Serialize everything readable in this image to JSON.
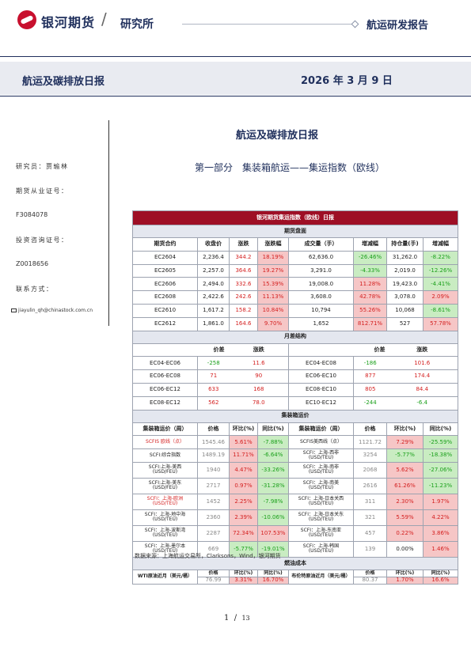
{
  "header": {
    "brand": "银河期货",
    "slash": "/",
    "institute": "研究所",
    "report_type": "航运研发报告"
  },
  "band": {
    "title": "航运及碳排放日报",
    "date": "2026 年 3 月 9 日"
  },
  "sidebar": {
    "researcher": "研究员：贾瑜林",
    "futures_license_label": "期货从业证号：",
    "futures_license": "F3084078",
    "consult_label": "投资咨询证号：",
    "consult": "Z0018656",
    "contact_label": "联系方式：",
    "email": "jiayulin_qh@chinastock.com.cn"
  },
  "doc_title": "航运及碳排放日报",
  "section_title": "第一部分　集装箱航运——集运指数（欧线）",
  "table": {
    "title": "银河期货集运指数（欧线）日报",
    "futures": {
      "section": "期货盘面",
      "headers": [
        "期货合约",
        "收盘价",
        "涨跌",
        "涨跌幅",
        "成交量（手）",
        "增减幅",
        "持仓量(手)",
        "增减幅"
      ],
      "rows": [
        [
          "EC2604",
          "2,236.4",
          "344.2",
          "18.19%",
          "62,636.0",
          "-26.46%",
          "31,262.0",
          "-8.22%"
        ],
        [
          "EC2605",
          "2,257.0",
          "364.6",
          "19.27%",
          "3,291.0",
          "-4.33%",
          "2,019.0",
          "-12.26%"
        ],
        [
          "EC2606",
          "2,494.0",
          "332.6",
          "15.39%",
          "19,008.0",
          "11.28%",
          "19,423.0",
          "-4.41%"
        ],
        [
          "EC2608",
          "2,422.6",
          "242.6",
          "11.13%",
          "3,608.0",
          "42.78%",
          "3,078.0",
          "2.09%"
        ],
        [
          "EC2610",
          "1,617.2",
          "158.2",
          "10.84%",
          "10,794",
          "55.26%",
          "10,068",
          "-8.61%"
        ],
        [
          "EC2612",
          "1,861.0",
          "164.6",
          "9.70%",
          "1,652",
          "812.71%",
          "527",
          "57.78%"
        ]
      ]
    },
    "spread": {
      "section": "月差结构",
      "headers": [
        "价差",
        "涨跌",
        "价差",
        "涨跌"
      ],
      "rows": [
        [
          "EC04-EC06",
          "-258",
          "11.6",
          "EC04-EC08",
          "-186",
          "101.6"
        ],
        [
          "EC06-EC08",
          "71",
          "90",
          "EC06-EC10",
          "877",
          "174.4"
        ],
        [
          "EC06-EC12",
          "633",
          "168",
          "EC08-EC10",
          "805",
          "84.4"
        ],
        [
          "EC08-EC12",
          "562",
          "78.0",
          "EC10-EC12",
          "-244",
          "-6.4"
        ]
      ]
    },
    "freight": {
      "section": "集装箱运价",
      "headers": [
        "集装箱运价（周）",
        "价格",
        "环比(%)",
        "同比(%)",
        "集装箱运价（周）",
        "价格",
        "环比(%)",
        "同比(%)"
      ],
      "rows": [
        [
          "SCFIS 欧线（点）",
          "1545.46",
          "5.61%",
          "-7.88%",
          "SCFIS美西线（点）",
          "1121.72",
          "7.29%",
          "-25.59%"
        ],
        [
          "SCFI:综合指数",
          "1489.19",
          "11.71%",
          "-6.64%",
          "SCFI：上海-西非\n(USD/TEU)",
          "3254",
          "-5.77%",
          "-18.38%"
        ],
        [
          "SCFI:上海-美西\n(USD/FEU)",
          "1940",
          "4.47%",
          "-33.26%",
          "SCFI：上海-南非\n(USD/TEU)",
          "2068",
          "5.62%",
          "-27.06%"
        ],
        [
          "SCFI:上海-美东\n(USD/FEU)",
          "2717",
          "0.97%",
          "-31.28%",
          "SCFI：上海-南美\n(USD/TEU)",
          "2616",
          "61.26%",
          "-11.23%"
        ],
        [
          "SCFI：上海-欧洲\n(USD/TEU)",
          "1452",
          "2.25%",
          "-7.98%",
          "SCFI：上海-日本关西\n(USD/TEU)",
          "311",
          "2.30%",
          "1.97%"
        ],
        [
          "SCFI：上海-地中海\n(USD/TEU)",
          "2360",
          "2.39%",
          "-10.06%",
          "SCFI：上海-日本关东\n(USD/TEU)",
          "321",
          "5.59%",
          "4.22%"
        ],
        [
          "SCFI：上海-波斯湾\n(USD/TEU)",
          "2287",
          "72.34%",
          "107.53%",
          "SCFI：上海-东南亚\n(USD/TEU)",
          "457",
          "0.22%",
          "3.86%"
        ],
        [
          "SCFI：上海-墨尔本\n(USD/TEU)",
          "669",
          "-5.77%",
          "-19.01%",
          "SCFI：上海-韩国\n(USD/TEU)",
          "139",
          "0.00%",
          "1.46%"
        ]
      ]
    },
    "fuel": {
      "section": "燃油成本",
      "headers": [
        "WTI原油近月（美元/桶）",
        "价格",
        "环比(%)",
        "同比(%)",
        "布伦特原油近月（美元/桶）",
        "价格",
        "环比(%)",
        "同比(%)"
      ],
      "row": [
        "76.99",
        "3.31%",
        "16.70%",
        "80.37",
        "1.70%",
        "16.6%"
      ]
    }
  },
  "source": "数据来源：上海航运交易所，Clarksons，Wind，银河期货",
  "page": {
    "current": "1",
    "sep": "/",
    "total": "13"
  },
  "colors": {
    "brand_navy": "#1f2f5c",
    "title_red": "#9e0f25",
    "up_red": "#d41f1f",
    "down_green": "#1aa01a",
    "pos_fill": "#f6c6c6",
    "neg_fill": "#c9ecc2"
  }
}
